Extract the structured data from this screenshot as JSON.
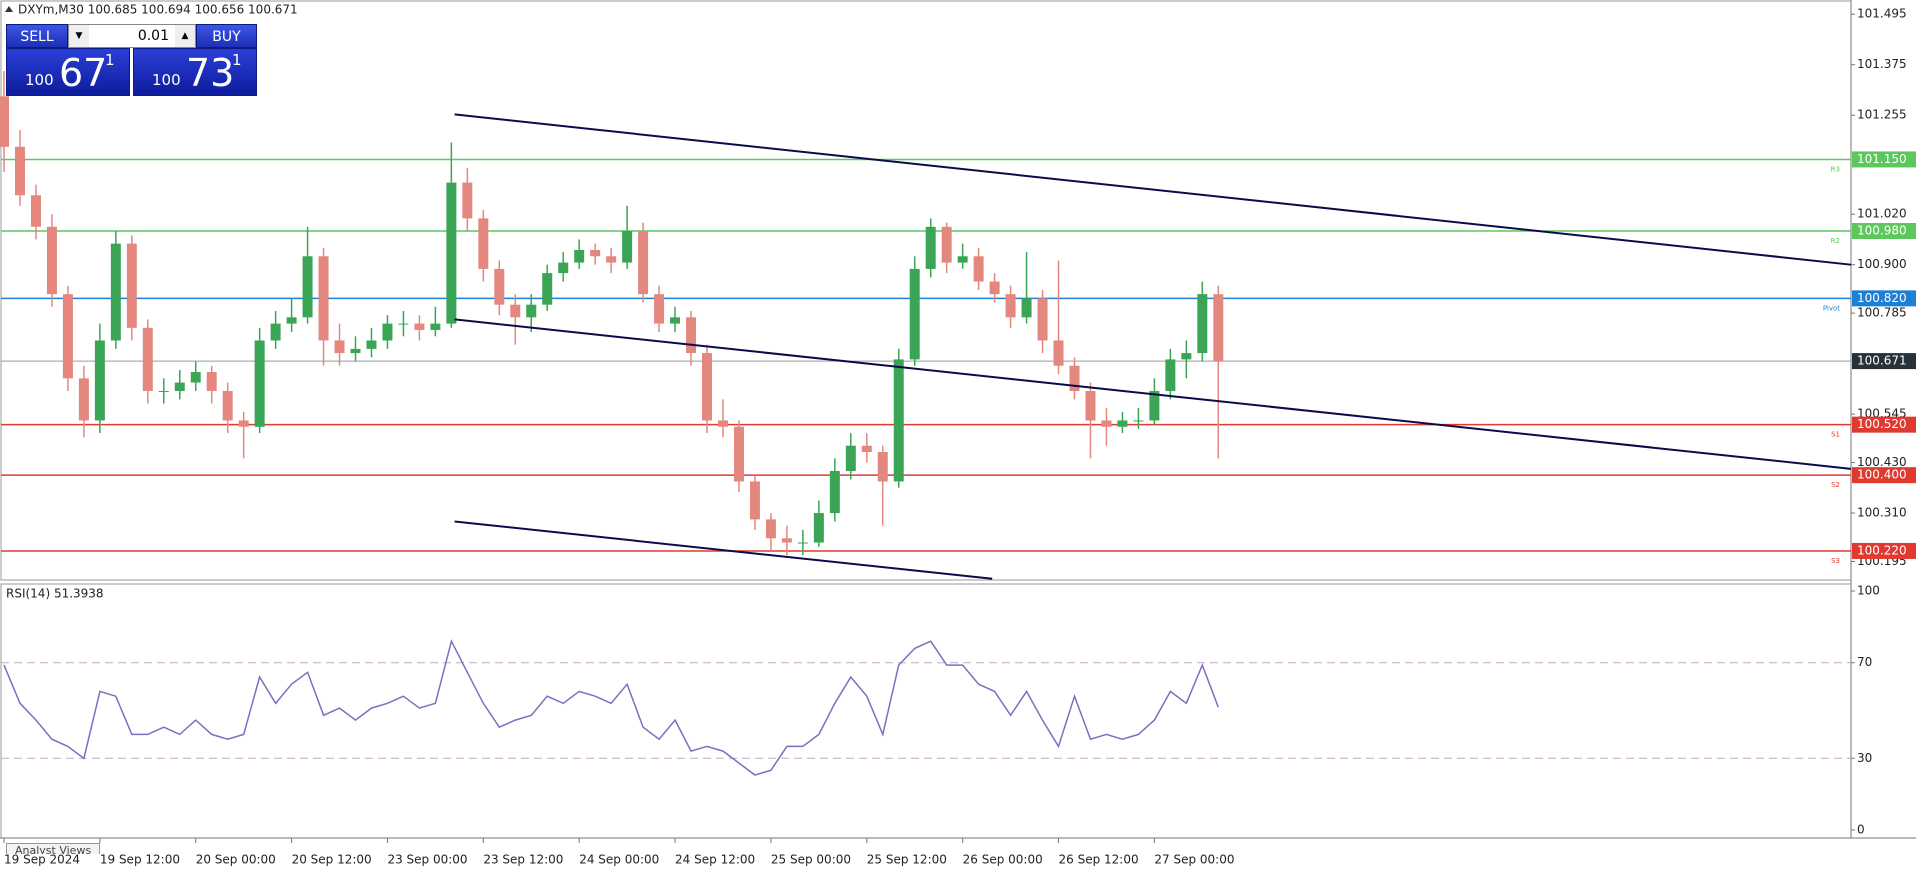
{
  "chart_data": [
    {
      "type": "candlestick",
      "title": "DXYm,M30 100.685 100.694 100.656 100.671",
      "bull_color": "#3aa655",
      "bear_color": "#e4877f",
      "xlim": [
        0,
        231.2
      ],
      "ylim": [
        100.151,
        101.524
      ],
      "xticks": [
        {
          "value": 0,
          "label": "19 Sep 2024"
        },
        {
          "value": 12,
          "label": "19 Sep 12:00"
        },
        {
          "value": 24,
          "label": "20 Sep 00:00"
        },
        {
          "value": 36,
          "label": "20 Sep 12:00"
        },
        {
          "value": 48,
          "label": "23 Sep 00:00"
        },
        {
          "value": 60,
          "label": "23 Sep 12:00"
        },
        {
          "value": 72,
          "label": "24 Sep 00:00"
        },
        {
          "value": 84,
          "label": "24 Sep 12:00"
        },
        {
          "value": 96,
          "label": "25 Sep 00:00"
        },
        {
          "value": 108,
          "label": "25 Sep 12:00"
        },
        {
          "value": 120,
          "label": "26 Sep 00:00"
        },
        {
          "value": 132,
          "label": "26 Sep 12:00"
        },
        {
          "value": 144,
          "label": "27 Sep 00:00"
        }
      ],
      "yticks": [
        101.495,
        101.375,
        101.255,
        {
          "value": 101.02,
          "label": "101.020"
        },
        {
          "value": 100.9,
          "label": "100.900"
        },
        100.785,
        100.545,
        {
          "value": 100.43,
          "label": "100.430"
        },
        {
          "value": 100.31,
          "label": "100.310"
        },
        100.195
      ],
      "levels": [
        {
          "name": "R3",
          "value": 101.15,
          "label": "101.150",
          "color": "#5cc85c"
        },
        {
          "name": "R2",
          "value": 100.98,
          "label": "100.980",
          "color": "#5cc85c"
        },
        {
          "name": "Pivot",
          "value": 100.82,
          "label": "100.820",
          "color": "#1e7fd6"
        },
        {
          "name": "S1",
          "value": 100.52,
          "label": "100.520",
          "color": "#e03a30"
        },
        {
          "name": "S2",
          "value": 100.4,
          "label": "100.400",
          "color": "#e03a30"
        },
        {
          "name": "S3",
          "value": 100.22,
          "label": "100.220",
          "color": "#e03a30"
        }
      ],
      "current_price": 100.671,
      "trendlines": [
        {
          "color": "#0b0b4a",
          "x": [
            56.4,
            231.2
          ],
          "y": [
            101.257,
            100.9
          ]
        },
        {
          "color": "#0b0b4a",
          "x": [
            56.4,
            231.2
          ],
          "y": [
            100.77,
            100.415
          ]
        },
        {
          "color": "#0b0b4a",
          "x": [
            56.4,
            123.7
          ],
          "y": [
            100.29,
            100.154
          ]
        }
      ],
      "x": [
        0,
        2,
        4,
        6,
        8,
        10,
        12,
        14,
        16,
        18,
        20,
        22,
        24,
        26,
        28,
        30,
        32,
        34,
        36,
        38,
        40,
        42,
        44,
        46,
        48,
        50,
        52,
        54,
        56,
        58,
        60,
        62,
        64,
        66,
        68,
        70,
        72,
        74,
        76,
        78,
        80,
        82,
        84,
        86,
        88,
        90,
        92,
        94,
        96,
        98,
        100,
        102,
        104,
        106,
        108,
        110,
        112,
        114,
        116,
        118,
        120,
        122,
        124,
        126,
        128,
        130,
        132,
        134,
        136,
        138,
        140,
        142,
        144,
        146,
        148,
        150,
        152
      ],
      "ohlc": [
        [
          101.3,
          101.36,
          101.12,
          101.18
        ],
        [
          101.18,
          101.22,
          101.04,
          101.065
        ],
        [
          101.065,
          101.09,
          100.96,
          100.99
        ],
        [
          100.99,
          101.02,
          100.8,
          100.83
        ],
        [
          100.83,
          100.85,
          100.6,
          100.63
        ],
        [
          100.63,
          100.66,
          100.49,
          100.53
        ],
        [
          100.53,
          100.76,
          100.5,
          100.72
        ],
        [
          100.72,
          100.98,
          100.7,
          100.95
        ],
        [
          100.95,
          100.97,
          100.72,
          100.75
        ],
        [
          100.75,
          100.77,
          100.57,
          100.6
        ],
        [
          100.6,
          100.63,
          100.57,
          100.6
        ],
        [
          100.6,
          100.65,
          100.58,
          100.62
        ],
        [
          100.62,
          100.67,
          100.6,
          100.645
        ],
        [
          100.645,
          100.66,
          100.57,
          100.6
        ],
        [
          100.6,
          100.62,
          100.5,
          100.53
        ],
        [
          100.53,
          100.55,
          100.44,
          100.515
        ],
        [
          100.515,
          100.75,
          100.5,
          100.72
        ],
        [
          100.72,
          100.79,
          100.7,
          100.76
        ],
        [
          100.76,
          100.82,
          100.74,
          100.775
        ],
        [
          100.775,
          100.99,
          100.76,
          100.92
        ],
        [
          100.92,
          100.94,
          100.66,
          100.72
        ],
        [
          100.72,
          100.76,
          100.66,
          100.69
        ],
        [
          100.69,
          100.73,
          100.67,
          100.7
        ],
        [
          100.7,
          100.75,
          100.68,
          100.72
        ],
        [
          100.72,
          100.78,
          100.7,
          100.76
        ],
        [
          100.76,
          100.79,
          100.73,
          100.76
        ],
        [
          100.76,
          100.78,
          100.72,
          100.745
        ],
        [
          100.745,
          100.8,
          100.73,
          100.76
        ],
        [
          100.76,
          101.19,
          100.75,
          101.095
        ],
        [
          101.095,
          101.13,
          100.98,
          101.01
        ],
        [
          101.01,
          101.03,
          100.86,
          100.89
        ],
        [
          100.89,
          100.91,
          100.78,
          100.805
        ],
        [
          100.805,
          100.83,
          100.71,
          100.775
        ],
        [
          100.775,
          100.83,
          100.74,
          100.805
        ],
        [
          100.805,
          100.9,
          100.79,
          100.88
        ],
        [
          100.88,
          100.93,
          100.86,
          100.905
        ],
        [
          100.905,
          100.96,
          100.89,
          100.935
        ],
        [
          100.935,
          100.95,
          100.9,
          100.92
        ],
        [
          100.92,
          100.94,
          100.88,
          100.905
        ],
        [
          100.905,
          101.04,
          100.89,
          100.98
        ],
        [
          100.98,
          101.0,
          100.81,
          100.83
        ],
        [
          100.83,
          100.85,
          100.74,
          100.76
        ],
        [
          100.76,
          100.8,
          100.74,
          100.775
        ],
        [
          100.775,
          100.79,
          100.66,
          100.69
        ],
        [
          100.69,
          100.71,
          100.5,
          100.53
        ],
        [
          100.53,
          100.58,
          100.49,
          100.515
        ],
        [
          100.515,
          100.53,
          100.36,
          100.385
        ],
        [
          100.385,
          100.4,
          100.27,
          100.295
        ],
        [
          100.295,
          100.31,
          100.22,
          100.25
        ],
        [
          100.25,
          100.28,
          100.21,
          100.24
        ],
        [
          100.24,
          100.27,
          100.21,
          100.24
        ],
        [
          100.24,
          100.34,
          100.23,
          100.31
        ],
        [
          100.31,
          100.44,
          100.29,
          100.41
        ],
        [
          100.41,
          100.5,
          100.39,
          100.47
        ],
        [
          100.47,
          100.5,
          100.43,
          100.455
        ],
        [
          100.455,
          100.47,
          100.28,
          100.385
        ],
        [
          100.385,
          100.7,
          100.37,
          100.675
        ],
        [
          100.675,
          100.92,
          100.66,
          100.89
        ],
        [
          100.89,
          101.01,
          100.87,
          100.99
        ],
        [
          100.99,
          101.0,
          100.88,
          100.905
        ],
        [
          100.905,
          100.95,
          100.89,
          100.92
        ],
        [
          100.92,
          100.94,
          100.84,
          100.86
        ],
        [
          100.86,
          100.88,
          100.81,
          100.83
        ],
        [
          100.83,
          100.85,
          100.75,
          100.775
        ],
        [
          100.775,
          100.93,
          100.76,
          100.82
        ],
        [
          100.82,
          100.84,
          100.69,
          100.72
        ],
        [
          100.72,
          100.91,
          100.64,
          100.66
        ],
        [
          100.66,
          100.68,
          100.58,
          100.6
        ],
        [
          100.6,
          100.62,
          100.44,
          100.53
        ],
        [
          100.53,
          100.56,
          100.47,
          100.515
        ],
        [
          100.515,
          100.55,
          100.5,
          100.53
        ],
        [
          100.53,
          100.56,
          100.51,
          100.53
        ],
        [
          100.53,
          100.63,
          100.52,
          100.6
        ],
        [
          100.6,
          100.7,
          100.58,
          100.675
        ],
        [
          100.675,
          100.72,
          100.63,
          100.69
        ],
        [
          100.69,
          100.86,
          100.67,
          100.83
        ],
        [
          100.83,
          100.85,
          100.44,
          100.671
        ]
      ]
    },
    {
      "type": "line",
      "title": "RSI(14) 51.3938",
      "color": "#7b6fbf",
      "xlim": [
        0,
        231.2
      ],
      "ylim": [
        0,
        100
      ],
      "yticks": [
        0,
        30,
        70,
        100
      ],
      "levels": [
        30,
        70
      ],
      "x": [
        0,
        2,
        4,
        6,
        8,
        10,
        12,
        14,
        16,
        18,
        20,
        22,
        24,
        26,
        28,
        30,
        32,
        34,
        36,
        38,
        40,
        42,
        44,
        46,
        48,
        50,
        52,
        54,
        56,
        58,
        60,
        62,
        64,
        66,
        68,
        70,
        72,
        74,
        76,
        78,
        80,
        82,
        84,
        86,
        88,
        90,
        92,
        94,
        96,
        98,
        100,
        102,
        104,
        106,
        108,
        110,
        112,
        114,
        116,
        118,
        120,
        122,
        124,
        126,
        128,
        130,
        132,
        134,
        136,
        138,
        140,
        142,
        144,
        146,
        148,
        150,
        152
      ],
      "values": [
        69,
        53,
        46,
        38,
        35,
        30,
        58,
        56,
        40,
        40,
        43,
        40,
        46,
        40,
        38,
        40,
        64,
        53,
        61,
        66,
        48,
        51,
        46,
        51,
        53,
        56,
        51,
        53,
        79,
        66,
        53,
        43,
        46,
        48,
        56,
        53,
        58,
        56,
        53,
        61,
        43,
        38,
        46,
        33,
        35,
        33,
        28,
        23,
        25,
        35,
        35,
        40,
        53,
        64,
        56,
        40,
        69,
        76,
        79,
        69,
        69,
        61,
        58,
        48,
        58,
        46,
        35,
        56,
        38,
        40,
        38,
        40,
        46,
        58,
        53,
        69,
        51.39
      ]
    }
  ],
  "ui": {
    "sell": "SELL",
    "buy": "BUY",
    "lot": "0.01",
    "bid": {
      "big": "100",
      "main": "67",
      "sup": "1"
    },
    "ask": {
      "big": "100",
      "main": "73",
      "sup": "1"
    },
    "tab": "Analyst Views"
  }
}
